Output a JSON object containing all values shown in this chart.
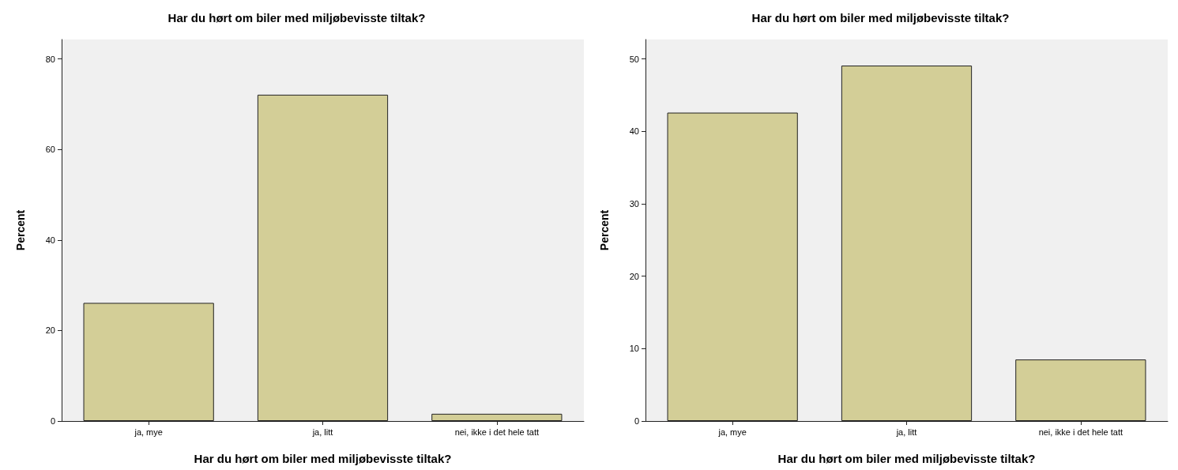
{
  "chart_data": [
    {
      "type": "bar",
      "title": "Har du hørt om biler med miljøbevisste tiltak?",
      "xlabel": "Har du hørt om biler med miljøbevisste tiltak?",
      "ylabel": "Percent",
      "categories": [
        "ja, mye",
        "ja, litt",
        "nei, ikke i det hele tatt"
      ],
      "values": [
        26.1,
        72.1,
        1.6
      ],
      "color": "#d3ce97",
      "ylim": [
        0,
        84.3
      ],
      "yticks": [
        0,
        20,
        40,
        60,
        80
      ]
    },
    {
      "type": "bar",
      "title": "Har du hørt om biler med miljøbevisste tiltak?",
      "xlabel": "Har du hørt om biler med miljøbevisste tiltak?",
      "ylabel": "Percent",
      "categories": [
        "ja, mye",
        "ja, litt",
        "nei, ikke i det hele tatt"
      ],
      "values": [
        42.6,
        49.1,
        8.5
      ],
      "color": "#d3ce97",
      "ylim": [
        0,
        52.7
      ],
      "yticks": [
        0,
        10,
        20,
        30,
        40,
        50
      ]
    }
  ]
}
